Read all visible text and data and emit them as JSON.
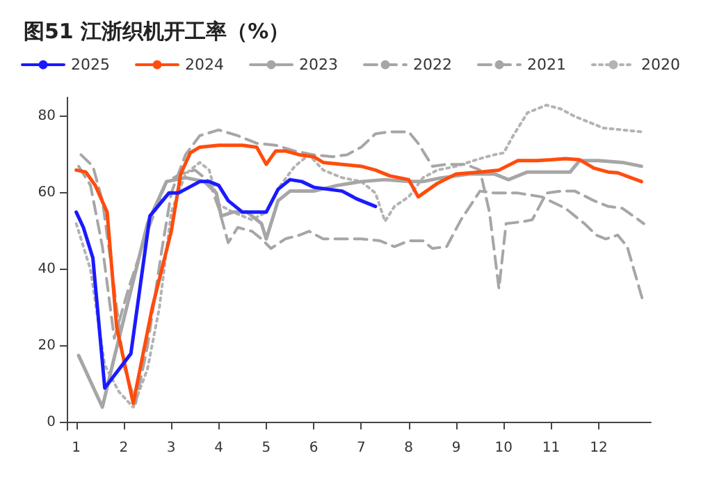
{
  "chart_data": {
    "type": "line",
    "title": "图51 江浙织机开工率（%）",
    "xlim": [
      0.8,
      13.1
    ],
    "xticks": [
      1,
      2,
      3,
      4,
      5,
      6,
      7,
      8,
      9,
      10,
      11,
      12
    ],
    "ylim": [
      -2,
      85
    ],
    "yticks": [
      0,
      20,
      40,
      60,
      80
    ],
    "grid": false,
    "legend": "top",
    "marker": "none",
    "series": [
      {
        "name": "2025",
        "color": "#1a1aff",
        "line_style": "solid",
        "x": [
          1.0,
          1.15,
          1.35,
          1.6,
          2.15,
          2.55,
          2.95,
          3.15,
          3.6,
          3.8,
          4.0,
          4.2,
          4.5,
          4.8,
          5.0,
          5.25,
          5.5,
          5.75,
          6.0,
          6.3,
          6.6,
          6.9,
          7.3
        ],
        "values": [
          55,
          51,
          43,
          9,
          18,
          54,
          60,
          60,
          63,
          63,
          62,
          58,
          55,
          55,
          55,
          61,
          63.5,
          63,
          61.5,
          61,
          60.5,
          58.5,
          56.5
        ]
      },
      {
        "name": "2024",
        "color": "#ff4c0d",
        "line_style": "solid",
        "x": [
          1.0,
          1.2,
          1.4,
          1.65,
          1.85,
          2.2,
          2.6,
          3.0,
          3.2,
          3.4,
          3.6,
          4.0,
          4.5,
          4.8,
          5.0,
          5.2,
          5.4,
          5.7,
          6.0,
          6.2,
          6.6,
          7.0,
          7.3,
          7.6,
          8.0,
          8.2,
          8.6,
          9.0,
          9.5,
          9.9,
          10.3,
          10.7,
          11.0,
          11.3,
          11.6,
          11.9,
          12.2,
          12.4,
          12.9
        ],
        "values": [
          66,
          65.5,
          62,
          55,
          25,
          5,
          30,
          50,
          65,
          70.5,
          72,
          72.5,
          72.5,
          72,
          67.5,
          71,
          71,
          70,
          69.5,
          68,
          67.5,
          67,
          66,
          64.5,
          63.5,
          59,
          62.5,
          65,
          65.5,
          66,
          68.5,
          68.5,
          68.7,
          69,
          68.7,
          66.5,
          65.5,
          65.3,
          63
        ]
      },
      {
        "name": "2023",
        "color": "#a6a6a6",
        "line_style": "solid",
        "x": [
          1.05,
          1.55,
          1.8,
          2.1,
          2.5,
          2.9,
          3.3,
          3.7,
          3.95,
          4.05,
          4.3,
          4.6,
          4.9,
          5.0,
          5.25,
          5.5,
          6.0,
          6.5,
          7.0,
          7.5,
          8.0,
          8.3,
          8.7,
          9.3,
          9.8,
          10.1,
          10.5,
          11.0,
          11.4,
          11.6,
          12.0,
          12.5,
          12.9
        ],
        "values": [
          17.5,
          4,
          17,
          32,
          52,
          63,
          64,
          63,
          60,
          54,
          55,
          55,
          52,
          48,
          58,
          60.5,
          60.5,
          62,
          63,
          63.5,
          63,
          63,
          64,
          65,
          65,
          63.5,
          65.5,
          65.5,
          65.5,
          68.5,
          68.5,
          68,
          67
        ]
      },
      {
        "name": "2022",
        "color": "#a6a6a6",
        "line_style": "dashed",
        "x": [
          1.05,
          1.3,
          1.55,
          1.8,
          2.1,
          2.5,
          2.9,
          3.2,
          3.5,
          3.8,
          4.0,
          4.2,
          4.4,
          4.7,
          4.9,
          5.1,
          5.4,
          5.7,
          5.9,
          6.2,
          6.6,
          7.0,
          7.4,
          7.7,
          8.0,
          8.3,
          8.5,
          8.8,
          9.1,
          9.5,
          9.8,
          10.3,
          10.8,
          11.3,
          11.7,
          11.95,
          12.15,
          12.4,
          12.6,
          12.95
        ],
        "values": [
          67,
          62,
          46,
          22,
          35,
          50,
          63,
          65,
          66,
          63,
          56,
          47,
          51,
          50,
          48,
          45.5,
          48,
          49,
          50,
          48,
          48,
          48,
          47.5,
          46,
          47.5,
          47.5,
          45.5,
          46,
          53,
          60.5,
          60,
          60,
          59,
          56,
          52,
          49,
          48,
          49,
          46,
          31
        ]
      },
      {
        "name": "2021",
        "color": "#a6a6a6",
        "line_style": "dashed",
        "x": [
          1.1,
          1.35,
          1.55,
          1.75,
          2.0,
          2.25,
          2.5,
          2.8,
          3.0,
          3.3,
          3.6,
          4.0,
          4.4,
          4.8,
          5.2,
          5.6,
          6.0,
          6.4,
          6.7,
          7.0,
          7.3,
          7.6,
          8.0,
          8.2,
          8.5,
          8.8,
          9.2,
          9.5,
          9.7,
          9.9,
          10.05,
          10.4,
          10.6,
          10.9,
          11.2,
          11.5,
          11.9,
          12.2,
          12.5,
          12.95
        ],
        "values": [
          70,
          67,
          58,
          40,
          15,
          5,
          20,
          45,
          60,
          70,
          75,
          76.5,
          75,
          73,
          72.5,
          71,
          70,
          69.5,
          70,
          72,
          75.5,
          76,
          76,
          73,
          67,
          67.5,
          67.5,
          66,
          55,
          35,
          52,
          52.5,
          53,
          60,
          60.5,
          60.5,
          58,
          56.5,
          56,
          52
        ]
      },
      {
        "name": "2020",
        "color": "#b3b3b3",
        "line_style": "dotted",
        "x": [
          1.0,
          1.3,
          1.6,
          1.9,
          2.2,
          2.5,
          2.75,
          3.0,
          3.3,
          3.6,
          3.8,
          4.0,
          4.3,
          4.7,
          5.0,
          5.3,
          5.6,
          5.9,
          6.2,
          6.6,
          7.0,
          7.3,
          7.5,
          7.7,
          8.0,
          8.3,
          8.6,
          9.0,
          9.5,
          9.8,
          10.0,
          10.2,
          10.5,
          10.9,
          11.2,
          11.5,
          11.8,
          12.1,
          12.5,
          12.9
        ],
        "values": [
          52,
          40,
          15,
          8,
          4,
          14,
          30,
          55,
          65,
          68,
          66,
          57,
          55,
          53,
          55,
          62,
          67,
          70,
          66,
          64,
          63,
          60,
          52.6,
          56.5,
          59,
          64,
          66,
          67,
          69,
          70,
          70.5,
          75,
          81,
          83,
          82,
          80,
          78.5,
          77,
          76.5,
          76
        ]
      }
    ]
  }
}
